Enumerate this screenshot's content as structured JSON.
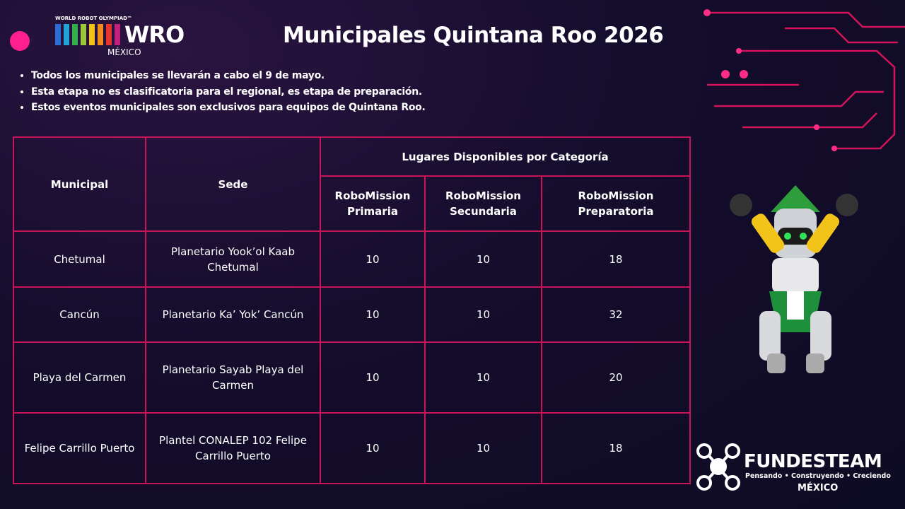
{
  "logo": {
    "top": "WORLD ROBOT OLYMPIAD™",
    "name": "WRO",
    "country": "MÉXICO"
  },
  "title": "Municipales Quintana Roo 2026",
  "bullets": [
    "Todos los municipales se llevarán a cabo el 9 de mayo.",
    "Esta etapa no es clasificatoria para el regional, es etapa de preparación.",
    "Estos eventos municipales son exclusivos para equipos de Quintana Roo."
  ],
  "table": {
    "headers": [
      "Municipal",
      "Sede",
      "Lugares Disponibles por Categoría"
    ],
    "subheaders": [
      "RoboMission Primaria",
      "RoboMission Secundaria",
      "RoboMission Preparatoria"
    ],
    "rows": [
      [
        "Chetumal",
        "Planetario Yook’ol Kaab Chetumal",
        10,
        10,
        18
      ],
      [
        "Cancún",
        "Planetario Ka’ Yok’ Cancún",
        10,
        10,
        32
      ],
      [
        "Playa del Carmen",
        "Planetario Sayab Playa del Carmen",
        10,
        10,
        20
      ],
      [
        "Felipe Carrillo Puerto",
        "Plantel CONALEP 102 Felipe Carrillo Puerto",
        10,
        10,
        18
      ]
    ]
  },
  "footer_logo": {
    "name": "FUNDESTEAM",
    "tagline": "Pensando • Construyendo • Creciendo",
    "country": "MÉXICO"
  }
}
